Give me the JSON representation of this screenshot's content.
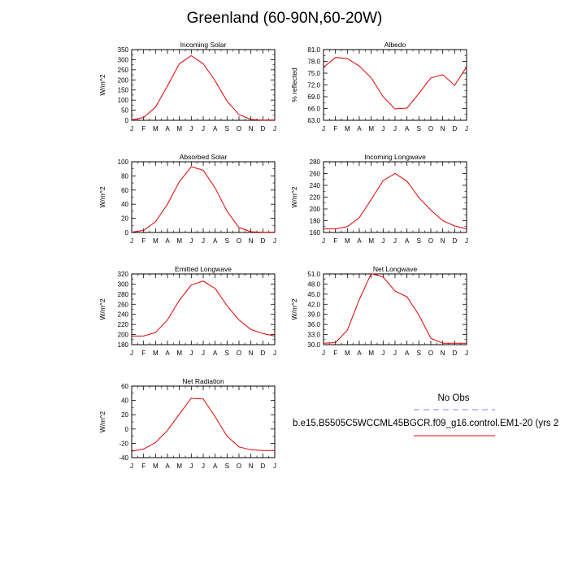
{
  "title": "Greenland (60-90N,60-20W)",
  "months": [
    "J",
    "F",
    "M",
    "A",
    "M",
    "J",
    "J",
    "A",
    "S",
    "O",
    "N",
    "D",
    "J"
  ],
  "legend": {
    "obs_label": "No Obs",
    "model_label": "b.e15.B5505C5WCCML45BGCR.f09_g16.control.EM1-20 (yrs 2",
    "obs_color": "#8080ff",
    "model_color": "#e00000"
  },
  "chart_data": [
    {
      "type": "line",
      "title": "Incoming Solar",
      "ylabel": "W/m^2",
      "ylim": [
        0,
        350
      ],
      "yticks": [
        "0",
        "50",
        "100",
        "150",
        "200",
        "250",
        "300",
        "350"
      ],
      "x": [
        "J",
        "F",
        "M",
        "A",
        "M",
        "J",
        "J",
        "A",
        "S",
        "O",
        "N",
        "D",
        "J"
      ],
      "series": [
        {
          "values": [
            2,
            14,
            65,
            170,
            280,
            320,
            280,
            195,
            95,
            28,
            4,
            1,
            2
          ]
        }
      ]
    },
    {
      "type": "line",
      "title": "Albedo",
      "ylabel": "% reflected",
      "ylim": [
        63,
        81
      ],
      "yticks": [
        "63.0",
        "66.0",
        "69.0",
        "72.0",
        "75.0",
        "78.0",
        "81.0"
      ],
      "x": [
        "J",
        "F",
        "M",
        "A",
        "M",
        "J",
        "J",
        "A",
        "S",
        "O",
        "N",
        "D",
        "J"
      ],
      "series": [
        {
          "values": [
            76.5,
            79.0,
            78.7,
            76.8,
            73.8,
            69.0,
            65.9,
            66.1,
            69.8,
            73.8,
            74.6,
            71.9,
            76.6
          ]
        }
      ]
    },
    {
      "type": "line",
      "title": "Absorbed Solar",
      "ylabel": "W/m^2",
      "ylim": [
        0,
        100
      ],
      "yticks": [
        "0",
        "20",
        "40",
        "60",
        "80",
        "100"
      ],
      "x": [
        "J",
        "F",
        "M",
        "A",
        "M",
        "J",
        "J",
        "A",
        "S",
        "O",
        "N",
        "D",
        "J"
      ],
      "series": [
        {
          "values": [
            0.5,
            3,
            15,
            40,
            72,
            93,
            88,
            63,
            30,
            7,
            1,
            0.2,
            0.5
          ]
        }
      ]
    },
    {
      "type": "line",
      "title": "Incoming Longwave",
      "ylabel": "W/m^2",
      "ylim": [
        160,
        280
      ],
      "yticks": [
        "160",
        "180",
        "200",
        "220",
        "240",
        "260",
        "280"
      ],
      "x": [
        "J",
        "F",
        "M",
        "A",
        "M",
        "J",
        "J",
        "A",
        "S",
        "O",
        "N",
        "D",
        "J"
      ],
      "series": [
        {
          "values": [
            166,
            166,
            170,
            185,
            216,
            248,
            260,
            247,
            219,
            198,
            180,
            171,
            166
          ]
        }
      ]
    },
    {
      "type": "line",
      "title": "Emitted Longwave",
      "ylabel": "W/m^2",
      "ylim": [
        180,
        320
      ],
      "yticks": [
        "180",
        "200",
        "220",
        "240",
        "260",
        "280",
        "300",
        "320"
      ],
      "x": [
        "J",
        "F",
        "M",
        "A",
        "M",
        "J",
        "J",
        "A",
        "S",
        "O",
        "N",
        "D",
        "J"
      ],
      "series": [
        {
          "values": [
            197,
            197,
            204,
            229,
            268,
            298,
            306,
            291,
            257,
            229,
            210,
            202,
            197
          ]
        }
      ]
    },
    {
      "type": "line",
      "title": "Net Longwave",
      "ylabel": "W/m^2",
      "ylim": [
        30,
        51
      ],
      "yticks": [
        "30.0",
        "33.0",
        "36.0",
        "39.0",
        "42.0",
        "45.0",
        "48.0",
        "51.0"
      ],
      "x": [
        "J",
        "F",
        "M",
        "A",
        "M",
        "J",
        "J",
        "A",
        "S",
        "O",
        "N",
        "D",
        "J"
      ],
      "series": [
        {
          "values": [
            30.4,
            30.6,
            34.3,
            43.4,
            51.1,
            50.1,
            45.9,
            44.2,
            38.8,
            31.9,
            30.4,
            30.4,
            30.4
          ]
        }
      ]
    },
    {
      "type": "line",
      "title": "Net Radiation",
      "ylabel": "W/m^2",
      "ylim": [
        -40,
        60
      ],
      "yticks": [
        "-40",
        "-20",
        "0",
        "20",
        "40",
        "60"
      ],
      "x": [
        "J",
        "F",
        "M",
        "A",
        "M",
        "J",
        "J",
        "A",
        "S",
        "O",
        "N",
        "D",
        "J"
      ],
      "series": [
        {
          "values": [
            -31,
            -28,
            -19,
            -2,
            21,
            43,
            42,
            17,
            -10,
            -25,
            -29,
            -30,
            -30
          ]
        }
      ]
    }
  ]
}
